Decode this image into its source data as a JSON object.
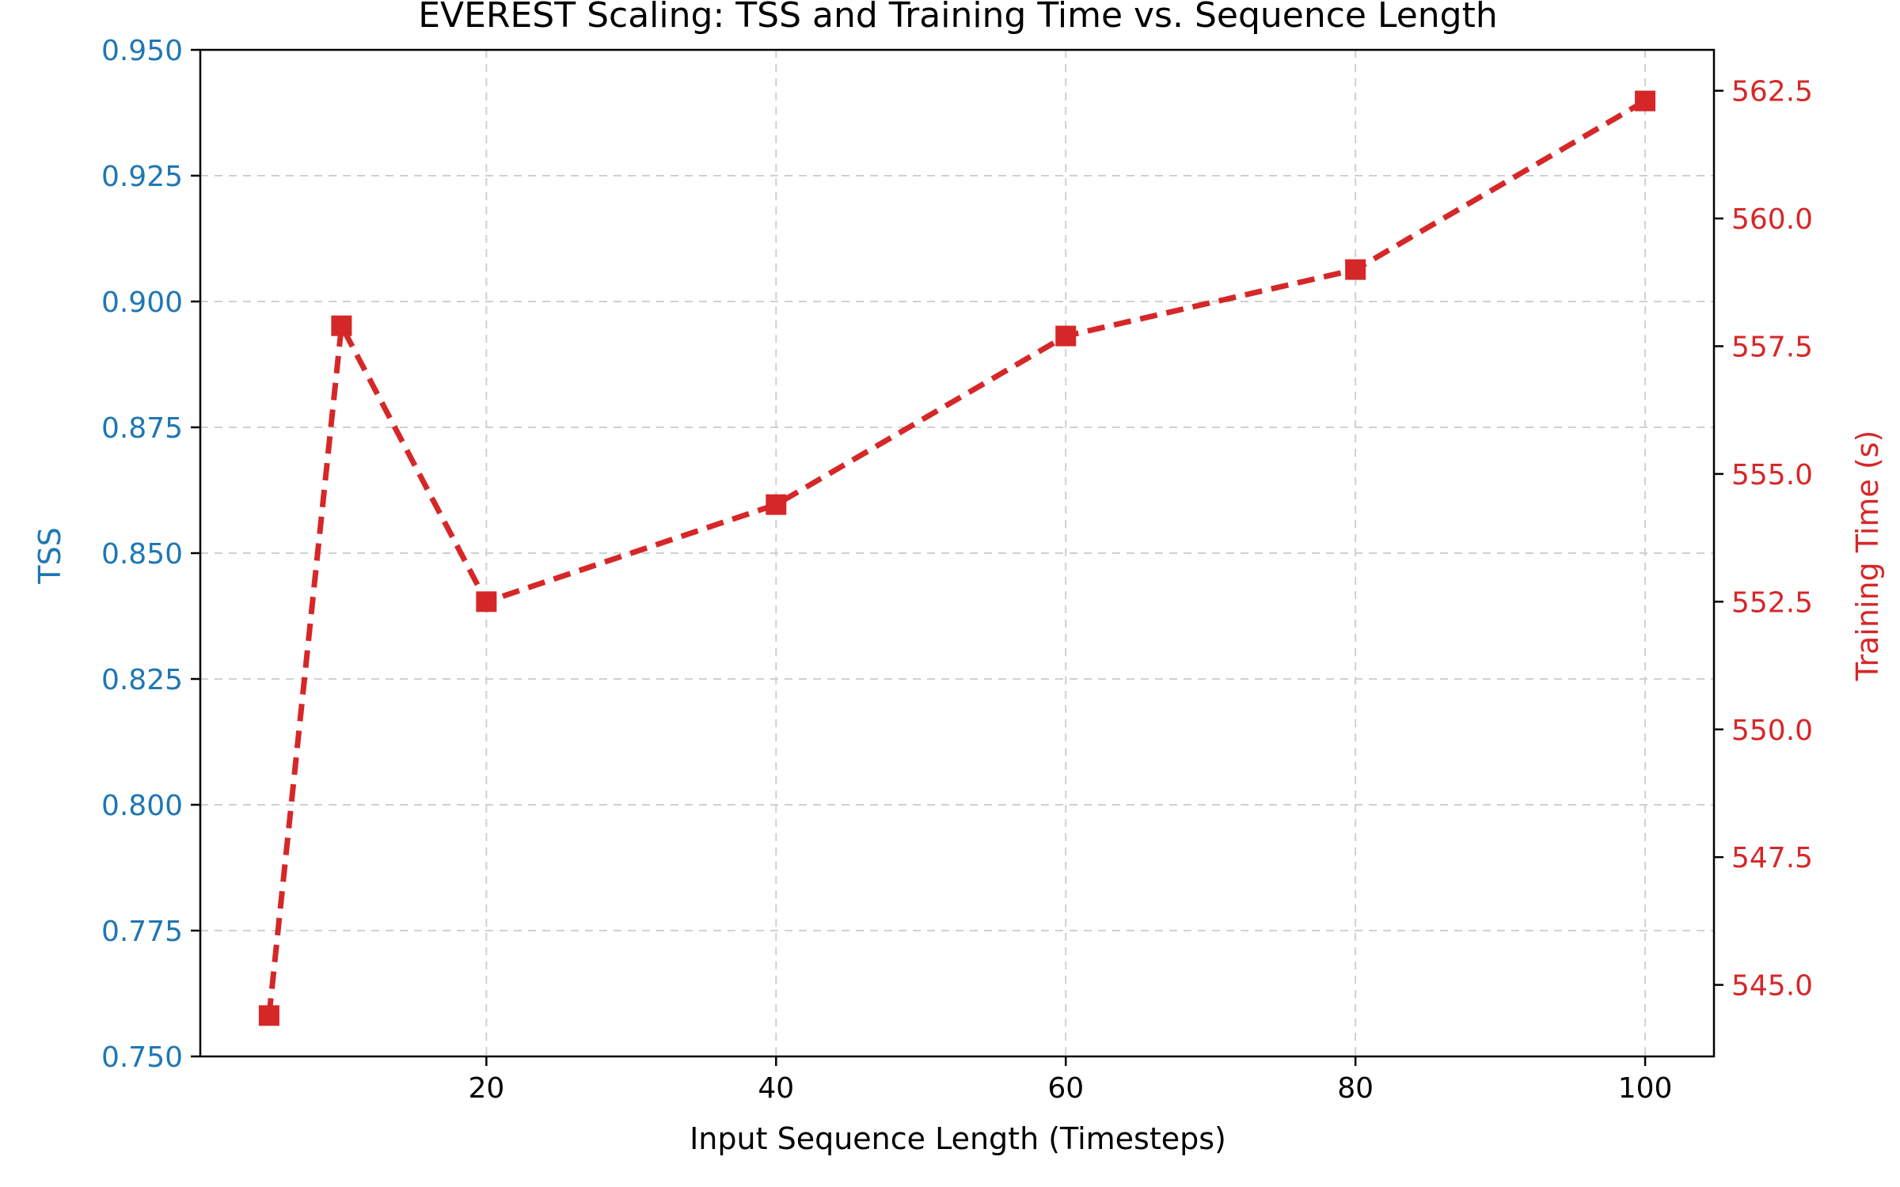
{
  "chart_data": {
    "type": "line",
    "title": "EVEREST Scaling: TSS and Training Time vs. Sequence Length",
    "xlabel": "Input Sequence Length (Timesteps)",
    "ylabel_left": "TSS",
    "ylabel_right": "Training Time (s)",
    "xlim": [
      0.25,
      104.75
    ],
    "ylim_left": [
      0.75,
      0.95
    ],
    "ylim_right": [
      543.6,
      563.3
    ],
    "x_ticks": [
      20,
      40,
      60,
      80,
      100
    ],
    "left_ticks": [
      "0.750",
      "0.775",
      "0.800",
      "0.825",
      "0.850",
      "0.875",
      "0.900",
      "0.925",
      "0.950"
    ],
    "right_ticks": [
      "545.0",
      "547.5",
      "550.0",
      "552.5",
      "555.0",
      "557.5",
      "560.0",
      "562.5"
    ],
    "grid": true,
    "colors": {
      "left_axis": "#1f77b4",
      "right_axis": "#d62728"
    },
    "series": [
      {
        "axis": "right",
        "color": "#d62728",
        "linestyle": "dashed",
        "marker": "square",
        "x": [
          5,
          10,
          20,
          40,
          60,
          80,
          100
        ],
        "y": [
          544.4,
          557.9,
          552.5,
          554.4,
          557.7,
          559.0,
          562.3
        ]
      }
    ]
  }
}
